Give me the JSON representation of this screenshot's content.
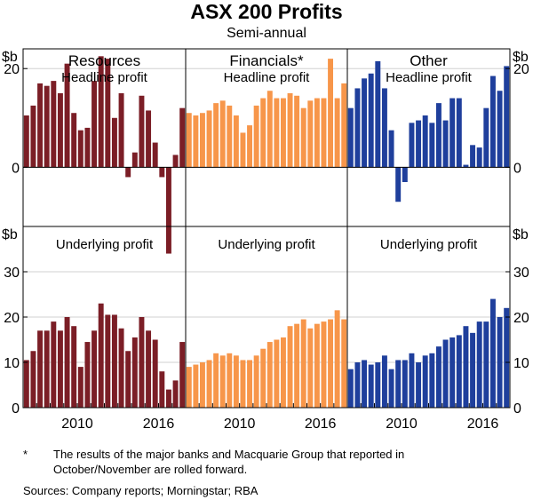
{
  "title": "ASX 200 Profits",
  "subtitle": "Semi-annual",
  "footnote": {
    "marker": "*",
    "text": "The results of the major banks and Macquarie Group that reported in October/November are rolled forward."
  },
  "sources": "Sources: Company reports; Morningstar; RBA",
  "colors": {
    "resources": "#7b1e26",
    "financials": "#f7964a",
    "other": "#1f3f9c"
  },
  "chart_data": {
    "type": "bar",
    "unit": "$b",
    "x_tick_labels": [
      "2010",
      "2016"
    ],
    "rows": [
      {
        "name": "Headline profit",
        "ylim": [
          -12,
          24
        ],
        "ticks": [
          0,
          20
        ],
        "tick_labels": [
          "0",
          "20"
        ]
      },
      {
        "name": "Underlying profit",
        "ylim": [
          0,
          40
        ],
        "ticks": [
          0,
          10,
          20,
          30
        ],
        "tick_labels": [
          "0",
          "10",
          "20",
          "30"
        ]
      }
    ],
    "columns": [
      "Resources",
      "Financials*",
      "Other"
    ],
    "panels": [
      {
        "sector": "Resources",
        "measure": "Headline profit",
        "values": [
          10.5,
          12.5,
          17,
          16.5,
          17.5,
          15,
          21,
          11,
          7.5,
          8,
          17.5,
          22.5,
          22,
          10,
          15,
          -2,
          3,
          14.5,
          11.5,
          5,
          -2,
          -17.5,
          2.5,
          12
        ]
      },
      {
        "sector": "Financials*",
        "measure": "Headline profit",
        "values": [
          11,
          10.5,
          11,
          11.5,
          13,
          13.5,
          12.5,
          10.5,
          7,
          8.5,
          12.5,
          14,
          15.5,
          14,
          14,
          15,
          14.5,
          12,
          13.5,
          14,
          14,
          22,
          14,
          17
        ]
      },
      {
        "sector": "Other",
        "measure": "Headline profit",
        "values": [
          12,
          16,
          18,
          19,
          21.5,
          16,
          7.5,
          -7,
          -3,
          9,
          9.5,
          10.5,
          9,
          13,
          9.5,
          14,
          14,
          0.5,
          4.5,
          4,
          12,
          18.5,
          15.5,
          20.5
        ]
      },
      {
        "sector": "Resources",
        "measure": "Underlying profit",
        "values": [
          10.5,
          12.5,
          17,
          17,
          19,
          17,
          20,
          18,
          9,
          14.5,
          17,
          23,
          20.5,
          20.5,
          17.5,
          12.5,
          15.5,
          20,
          17,
          15,
          8,
          4,
          6,
          14.5
        ]
      },
      {
        "sector": "Financials*",
        "measure": "Underlying profit",
        "values": [
          9,
          9.5,
          10,
          10.5,
          12,
          11.5,
          12,
          11.5,
          10.5,
          10.5,
          11.5,
          13,
          14.5,
          15,
          15.5,
          18,
          18.5,
          19.5,
          17.5,
          18.5,
          19,
          19.5,
          21.5,
          19.5
        ]
      },
      {
        "sector": "Other",
        "measure": "Underlying profit",
        "values": [
          8.5,
          10,
          10.5,
          9.5,
          10,
          11.5,
          8.5,
          10.5,
          10.5,
          12,
          10,
          11.5,
          12,
          13.5,
          15,
          15.5,
          16,
          18,
          16.5,
          19,
          19,
          24,
          20,
          22
        ]
      }
    ]
  }
}
